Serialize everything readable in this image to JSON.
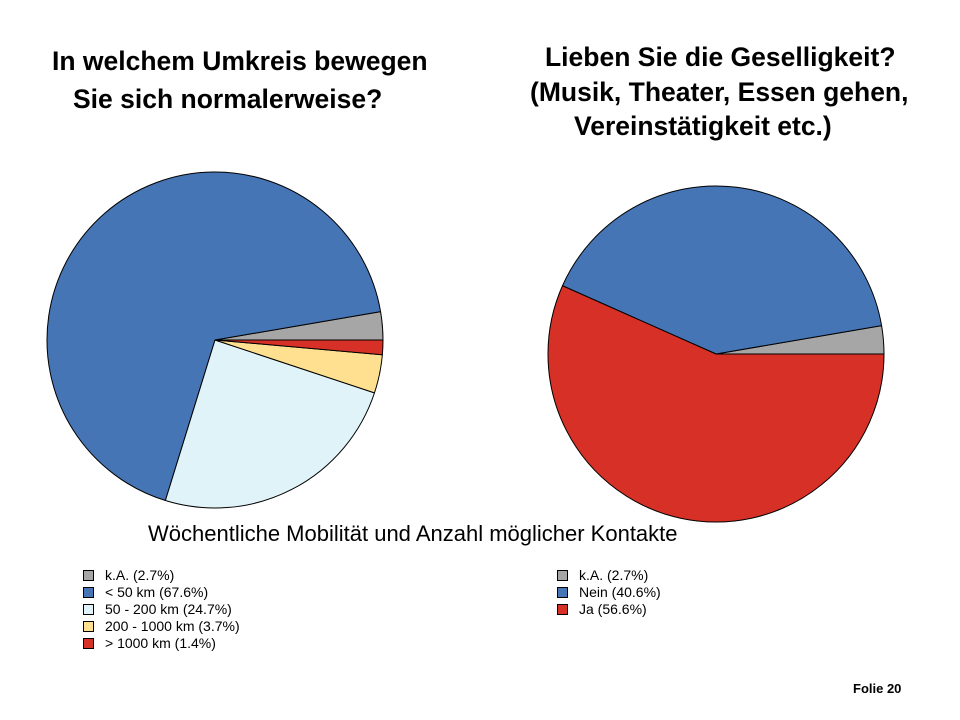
{
  "slide": {
    "caption": "Wöchentliche Mobilität und Anzahl möglicher Kontakte",
    "footer": "Folie 20"
  },
  "chart_data": [
    {
      "type": "pie",
      "title": [
        "In welchem Umkreis bewegen",
        "Sie sich normalerweise?"
      ],
      "labels": [
        "k.A. (2.7%)",
        "< 50 km (67.6%)",
        "50 - 200 km (24.7%)",
        "200 - 1000 km (3.7%)",
        "> 1000 km (1.4%)"
      ],
      "values": [
        2.7,
        67.6,
        24.7,
        3.7,
        1.4
      ],
      "colors": [
        "#a6a6a6",
        "#4575b4",
        "#e0f3f8",
        "#fee090",
        "#d73027"
      ],
      "legend": "bottom-left"
    },
    {
      "type": "pie",
      "title": [
        "Lieben Sie die Geselligkeit?",
        "(Musik, Theater, Essen gehen,",
        "Vereinstätigkeit etc.)"
      ],
      "labels": [
        "k.A. (2.7%)",
        "Nein (40.6%)",
        "Ja (56.6%)"
      ],
      "values": [
        2.7,
        40.6,
        56.6
      ],
      "colors": [
        "#a6a6a6",
        "#4575b4",
        "#d73027"
      ],
      "legend": "bottom"
    }
  ]
}
